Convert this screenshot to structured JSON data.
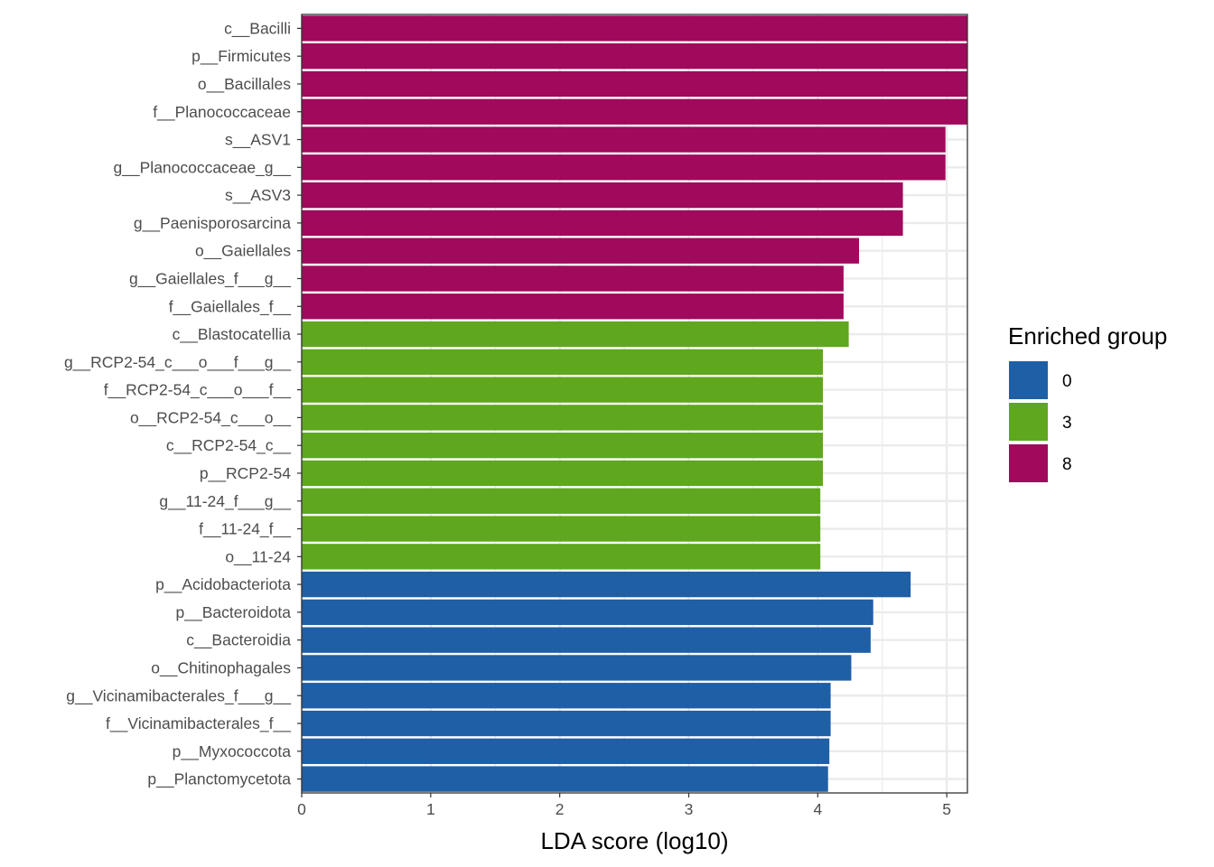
{
  "chart_data": {
    "type": "bar",
    "orientation": "horizontal",
    "xlabel": "LDA score (log10)",
    "ylabel": "",
    "title": "",
    "xlim": [
      0,
      5.16
    ],
    "x_ticks": [
      0,
      1,
      2,
      3,
      4,
      5
    ],
    "grid": true,
    "legend": {
      "title": "Enriched group",
      "position": "right",
      "entries": [
        {
          "label": "0",
          "color": "#1f5fa6"
        },
        {
          "label": "3",
          "color": "#5fa71e"
        },
        {
          "label": "8",
          "color": "#a0095c"
        }
      ]
    },
    "categories": [
      "c__Bacilli",
      "p__Firmicutes",
      "o__Bacillales",
      "f__Planococcaceae",
      "s__ASV1",
      "g__Planococcaceae_g__",
      "s__ASV3",
      "g__Paenisporosarcina",
      "o__Gaiellales",
      "g__Gaiellales_f___g__",
      "f__Gaiellales_f__",
      "c__Blastocatellia",
      "g__RCP2-54_c___o___f___g__",
      "f__RCP2-54_c___o___f__",
      "o__RCP2-54_c___o__",
      "c__RCP2-54_c__",
      "p__RCP2-54",
      "g__11-24_f___g__",
      "f__11-24_f__",
      "o__11-24",
      "p__Acidobacteriota",
      "p__Bacteroidota",
      "c__Bacteroidia",
      "o__Chitinophagales",
      "g__Vicinamibacterales_f___g__",
      "f__Vicinamibacterales_f__",
      "p__Myxococcota",
      "p__Planctomycetota"
    ],
    "values": [
      5.16,
      5.16,
      5.16,
      5.16,
      4.99,
      4.99,
      4.66,
      4.66,
      4.32,
      4.2,
      4.2,
      4.24,
      4.04,
      4.04,
      4.04,
      4.04,
      4.04,
      4.02,
      4.02,
      4.02,
      4.72,
      4.43,
      4.41,
      4.26,
      4.1,
      4.1,
      4.09,
      4.08
    ],
    "groups": [
      "8",
      "8",
      "8",
      "8",
      "8",
      "8",
      "8",
      "8",
      "8",
      "8",
      "8",
      "3",
      "3",
      "3",
      "3",
      "3",
      "3",
      "3",
      "3",
      "3",
      "0",
      "0",
      "0",
      "0",
      "0",
      "0",
      "0",
      "0"
    ]
  }
}
